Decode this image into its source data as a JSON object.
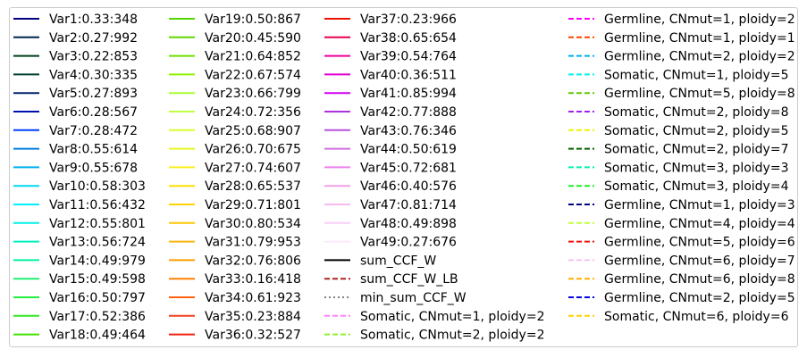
{
  "chart_data": {
    "type": "line",
    "title": "",
    "xlabel": "",
    "ylabel": "",
    "legend_placement": "full-figure",
    "legend_columns": 4,
    "series": [
      {
        "name": "Var1:0.33:348",
        "color": "#000080",
        "linestyle": "solid"
      },
      {
        "name": "Var2:0.27:992",
        "color": "#00264d",
        "linestyle": "solid"
      },
      {
        "name": "Var3:0.22:853",
        "color": "#00401a",
        "linestyle": "solid"
      },
      {
        "name": "Var4:0.30:335",
        "color": "#003d33",
        "linestyle": "solid"
      },
      {
        "name": "Var5:0.27:893",
        "color": "#00206e",
        "linestyle": "solid"
      },
      {
        "name": "Var6:0.28:567",
        "color": "#0010b0",
        "linestyle": "solid"
      },
      {
        "name": "Var7:0.28:472",
        "color": "#0040ff",
        "linestyle": "solid"
      },
      {
        "name": "Var8:0.55:614",
        "color": "#0080e0",
        "linestyle": "solid"
      },
      {
        "name": "Var9:0.55:678",
        "color": "#00b0f0",
        "linestyle": "solid"
      },
      {
        "name": "Var10:0.58:303",
        "color": "#00d8f0",
        "linestyle": "solid"
      },
      {
        "name": "Var11:0.56:432",
        "color": "#00f0ff",
        "linestyle": "solid"
      },
      {
        "name": "Var12:0.55:801",
        "color": "#00f0e8",
        "linestyle": "solid"
      },
      {
        "name": "Var13:0.56:724",
        "color": "#00f0c0",
        "linestyle": "solid"
      },
      {
        "name": "Var14:0.49:979",
        "color": "#00f0a0",
        "linestyle": "solid"
      },
      {
        "name": "Var15:0.49:598",
        "color": "#20f070",
        "linestyle": "solid"
      },
      {
        "name": "Var16:0.50:797",
        "color": "#20f040",
        "linestyle": "solid"
      },
      {
        "name": "Var17:0.52:386",
        "color": "#30e820",
        "linestyle": "solid"
      },
      {
        "name": "Var18:0.49:464",
        "color": "#40e000",
        "linestyle": "solid"
      },
      {
        "name": "Var19:0.50:867",
        "color": "#50d800",
        "linestyle": "solid"
      },
      {
        "name": "Var20:0.45:590",
        "color": "#60d800",
        "linestyle": "solid"
      },
      {
        "name": "Var21:0.64:852",
        "color": "#70e000",
        "linestyle": "solid"
      },
      {
        "name": "Var22:0.67:574",
        "color": "#90f000",
        "linestyle": "solid"
      },
      {
        "name": "Var23:0.66:799",
        "color": "#a8ff30",
        "linestyle": "solid"
      },
      {
        "name": "Var24:0.72:356",
        "color": "#c0ff40",
        "linestyle": "solid"
      },
      {
        "name": "Var25:0.68:907",
        "color": "#d8ff30",
        "linestyle": "solid"
      },
      {
        "name": "Var26:0.70:675",
        "color": "#e8f820",
        "linestyle": "solid"
      },
      {
        "name": "Var27:0.74:607",
        "color": "#f8f020",
        "linestyle": "solid"
      },
      {
        "name": "Var28:0.65:537",
        "color": "#ffe000",
        "linestyle": "solid"
      },
      {
        "name": "Var29:0.71:801",
        "color": "#ffd400",
        "linestyle": "solid"
      },
      {
        "name": "Var30:0.80:534",
        "color": "#ffc800",
        "linestyle": "solid"
      },
      {
        "name": "Var31:0.79:953",
        "color": "#f8b810",
        "linestyle": "solid"
      },
      {
        "name": "Var32:0.76:806",
        "color": "#ffa000",
        "linestyle": "solid"
      },
      {
        "name": "Var33:0.16:418",
        "color": "#ff8000",
        "linestyle": "solid"
      },
      {
        "name": "Var34:0.61:923",
        "color": "#ff6010",
        "linestyle": "solid"
      },
      {
        "name": "Var35:0.23:884",
        "color": "#f04020",
        "linestyle": "solid"
      },
      {
        "name": "Var36:0.32:527",
        "color": "#f02010",
        "linestyle": "solid"
      },
      {
        "name": "Var37:0.23:966",
        "color": "#f01000",
        "linestyle": "solid"
      },
      {
        "name": "Var38:0.65:654",
        "color": "#e8004a",
        "linestyle": "solid"
      },
      {
        "name": "Var39:0.54:764",
        "color": "#f000a0",
        "linestyle": "solid"
      },
      {
        "name": "Var40:0.36:511",
        "color": "#e000d0",
        "linestyle": "solid"
      },
      {
        "name": "Var41:0.85:994",
        "color": "#d000f0",
        "linestyle": "solid"
      },
      {
        "name": "Var42:0.77:888",
        "color": "#b030e0",
        "linestyle": "solid"
      },
      {
        "name": "Var43:0.76:346",
        "color": "#b850e0",
        "linestyle": "solid"
      },
      {
        "name": "Var44:0.50:619",
        "color": "#d070e0",
        "linestyle": "solid"
      },
      {
        "name": "Var45:0.72:681",
        "color": "#f080f0",
        "linestyle": "solid"
      },
      {
        "name": "Var46:0.40:576",
        "color": "#f0a0e8",
        "linestyle": "solid"
      },
      {
        "name": "Var47:0.81:714",
        "color": "#f8b8f0",
        "linestyle": "solid"
      },
      {
        "name": "Var48:0.49:898",
        "color": "#f8d0f8",
        "linestyle": "solid"
      },
      {
        "name": "Var49:0.27:676",
        "color": "#fce8fc",
        "linestyle": "solid"
      },
      {
        "name": "sum_CCF_W",
        "color": "#000000",
        "linestyle": "solid"
      },
      {
        "name": "sum_CCF_W_LB",
        "color": "#b22222",
        "linestyle": "dashed"
      },
      {
        "name": "min_sum_CCF_W",
        "color": "#808080",
        "linestyle": "dotted"
      },
      {
        "name": "Somatic, CNmut=1, ploidy=2",
        "color": "#ff80ff",
        "linestyle": "dashed"
      },
      {
        "name": "Somatic, CNmut=2, ploidy=2",
        "color": "#90f030",
        "linestyle": "dashed"
      },
      {
        "name": "Germline, CNmut=1, ploidy=2",
        "color": "#ff00ff",
        "linestyle": "dashed"
      },
      {
        "name": "Germline, CNmut=1, ploidy=1",
        "color": "#ff4500",
        "linestyle": "dashed"
      },
      {
        "name": "Germline, CNmut=2, ploidy=2",
        "color": "#00b0f0",
        "linestyle": "dashed"
      },
      {
        "name": "Somatic, CNmut=1, ploidy=5",
        "color": "#00f0f0",
        "linestyle": "dashed"
      },
      {
        "name": "Germline, CNmut=5, ploidy=8",
        "color": "#60c800",
        "linestyle": "dashed"
      },
      {
        "name": "Somatic, CNmut=2, ploidy=8",
        "color": "#a020f0",
        "linestyle": "dashed"
      },
      {
        "name": "Somatic, CNmut=2, ploidy=5",
        "color": "#f0f000",
        "linestyle": "dashed"
      },
      {
        "name": "Somatic, CNmut=2, ploidy=7",
        "color": "#006400",
        "linestyle": "dashed"
      },
      {
        "name": "Somatic, CNmut=3, ploidy=3",
        "color": "#00f0b0",
        "linestyle": "dashed"
      },
      {
        "name": "Somatic, CNmut=3, ploidy=4",
        "color": "#20f020",
        "linestyle": "dashed"
      },
      {
        "name": "Germline, CNmut=1, ploidy=3",
        "color": "#000080",
        "linestyle": "dashed"
      },
      {
        "name": "Germline, CNmut=4, ploidy=4",
        "color": "#c0ff40",
        "linestyle": "dashed"
      },
      {
        "name": "Germline, CNmut=5, ploidy=6",
        "color": "#f01010",
        "linestyle": "dashed"
      },
      {
        "name": "Germline, CNmut=6, ploidy=7",
        "color": "#f8c0f0",
        "linestyle": "dashed"
      },
      {
        "name": "Germline, CNmut=6, ploidy=8",
        "color": "#ffb000",
        "linestyle": "dashed"
      },
      {
        "name": "Germline, CNmut=2, ploidy=5",
        "color": "#0000e0",
        "linestyle": "dashed"
      },
      {
        "name": "Somatic, CNmut=6, ploidy=6",
        "color": "#ffd000",
        "linestyle": "dashed"
      }
    ]
  }
}
